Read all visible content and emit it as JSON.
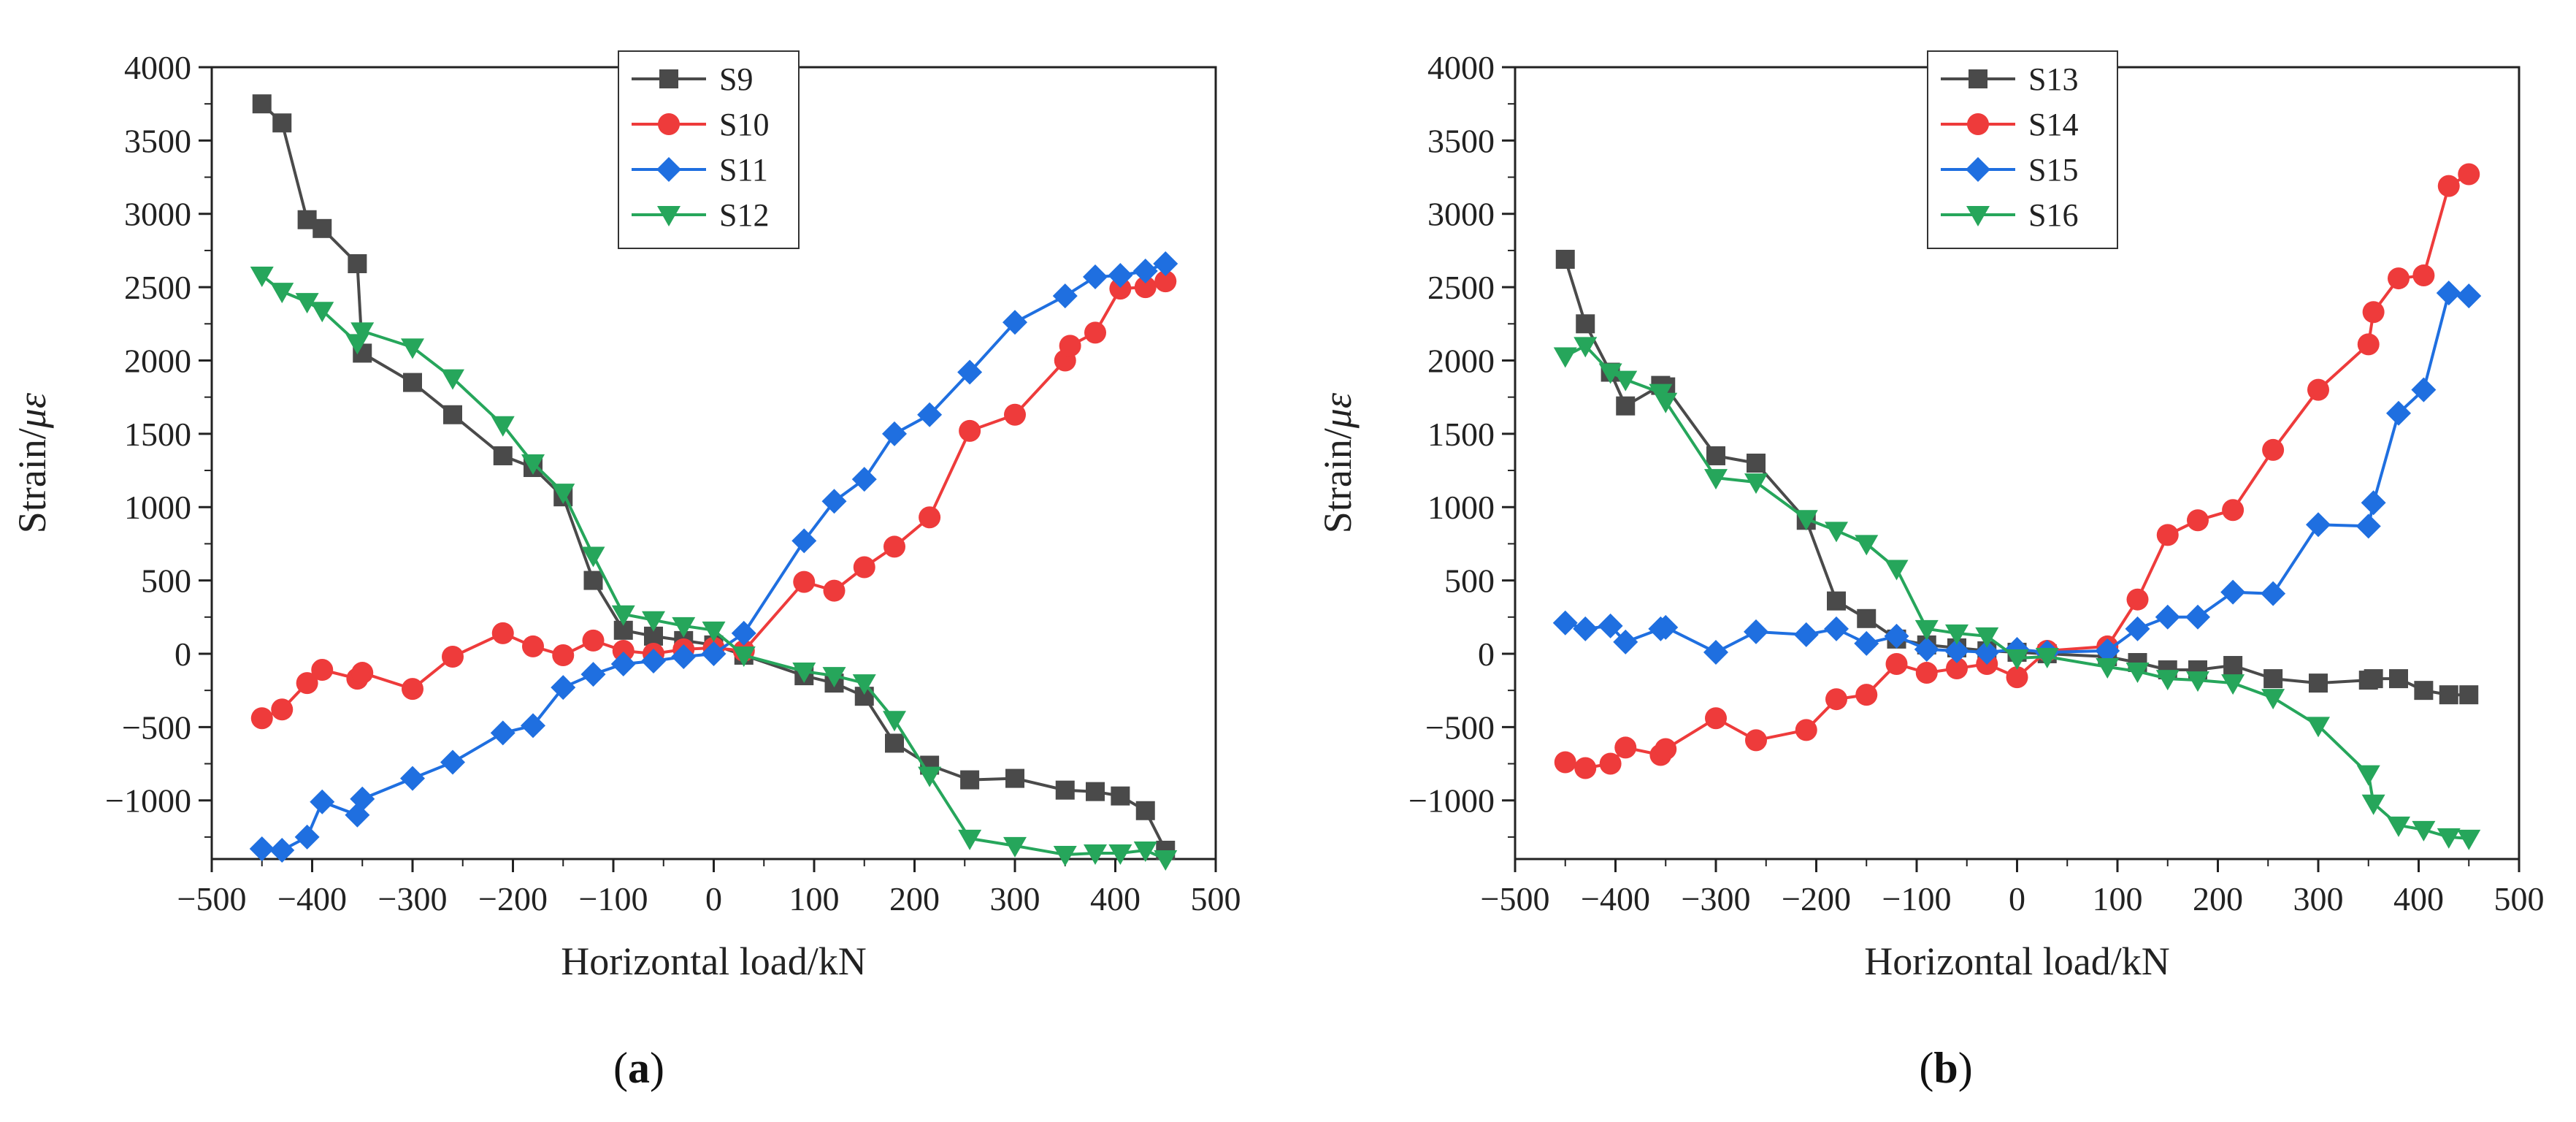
{
  "chart_data": [
    {
      "type": "line",
      "panel_label": "(a)",
      "panel_letter": "a",
      "xlabel": "Horizontal load/kN",
      "ylabel_prefix": "Strain/",
      "ylabel_unit": "με",
      "xlim": [
        -500,
        500
      ],
      "ylim": [
        -1400,
        4000
      ],
      "xticks": [
        -500,
        -400,
        -300,
        -200,
        -100,
        0,
        100,
        200,
        300,
        400,
        500
      ],
      "xtick_labels": [
        "−500",
        "−400",
        "−300",
        "−200",
        "−100",
        "0",
        "100",
        "200",
        "300",
        "400",
        "500"
      ],
      "yticks": [
        -1000,
        -500,
        0,
        500,
        1000,
        1500,
        2000,
        2500,
        3000,
        3500,
        4000
      ],
      "ytick_labels": [
        "−1000",
        "−500",
        "0",
        "500",
        "1000",
        "1500",
        "2000",
        "2500",
        "3000",
        "3500",
        "4000"
      ],
      "legend_position": "top-center",
      "series": [
        {
          "name": "S9",
          "color": "#4a4a4a",
          "marker": "square",
          "x": [
            -450,
            -430,
            -405,
            -390,
            -355,
            -350,
            -300,
            -260,
            -210,
            -180,
            -150,
            -120,
            -90,
            -60,
            -30,
            0,
            30,
            90,
            120,
            150,
            180,
            215,
            255,
            300,
            350,
            380,
            405,
            430,
            450
          ],
          "y": [
            3750,
            3620,
            2960,
            2900,
            2660,
            2050,
            1850,
            1630,
            1350,
            1270,
            1070,
            500,
            160,
            120,
            90,
            60,
            -10,
            -150,
            -200,
            -290,
            -610,
            -760,
            -860,
            -850,
            -930,
            -940,
            -970,
            -1070,
            -1340
          ]
        },
        {
          "name": "S10",
          "color": "#ee3b3b",
          "marker": "circle",
          "x": [
            -450,
            -430,
            -405,
            -390,
            -355,
            -350,
            -300,
            -260,
            -210,
            -180,
            -150,
            -120,
            -90,
            -60,
            -30,
            0,
            30,
            90,
            120,
            150,
            180,
            215,
            255,
            300,
            350,
            355,
            380,
            405,
            430,
            450
          ],
          "y": [
            -440,
            -380,
            -200,
            -110,
            -170,
            -130,
            -240,
            -20,
            140,
            50,
            -10,
            90,
            20,
            0,
            30,
            40,
            20,
            490,
            430,
            590,
            730,
            930,
            1520,
            1630,
            2000,
            2100,
            2190,
            2490,
            2500,
            2540
          ]
        },
        {
          "name": "S11",
          "color": "#1f6fe0",
          "marker": "diamond",
          "x": [
            -450,
            -430,
            -405,
            -390,
            -355,
            -350,
            -300,
            -260,
            -210,
            -180,
            -150,
            -120,
            -90,
            -60,
            -30,
            0,
            30,
            90,
            120,
            150,
            180,
            215,
            255,
            300,
            350,
            380,
            405,
            430,
            450
          ],
          "y": [
            -1330,
            -1340,
            -1250,
            -1010,
            -1100,
            -990,
            -850,
            -740,
            -540,
            -490,
            -230,
            -140,
            -70,
            -50,
            -20,
            0,
            140,
            770,
            1040,
            1190,
            1500,
            1630,
            1920,
            2260,
            2440,
            2570,
            2580,
            2610,
            2660
          ]
        },
        {
          "name": "S12",
          "color": "#26a65b",
          "marker": "triangle-down",
          "x": [
            -450,
            -430,
            -405,
            -390,
            -355,
            -350,
            -300,
            -260,
            -210,
            -180,
            -150,
            -120,
            -90,
            -60,
            -30,
            0,
            30,
            90,
            120,
            150,
            180,
            215,
            255,
            300,
            350,
            380,
            405,
            430,
            450
          ],
          "y": [
            2580,
            2470,
            2400,
            2340,
            2120,
            2200,
            2090,
            1880,
            1560,
            1300,
            1100,
            670,
            270,
            230,
            190,
            160,
            -10,
            -120,
            -150,
            -200,
            -450,
            -830,
            -1260,
            -1310,
            -1370,
            -1360,
            -1360,
            -1340,
            -1400
          ]
        }
      ]
    },
    {
      "type": "line",
      "panel_label": "(b)",
      "panel_letter": "b",
      "xlabel": "Horizontal load/kN",
      "ylabel_prefix": "Strain/",
      "ylabel_unit": "με",
      "xlim": [
        -500,
        500
      ],
      "ylim": [
        -1400,
        4000
      ],
      "xticks": [
        -500,
        -400,
        -300,
        -200,
        -100,
        0,
        100,
        200,
        300,
        400,
        500
      ],
      "xtick_labels": [
        "−500",
        "−400",
        "−300",
        "−200",
        "−100",
        "0",
        "100",
        "200",
        "300",
        "400",
        "500"
      ],
      "yticks": [
        -1000,
        -500,
        0,
        500,
        1000,
        1500,
        2000,
        2500,
        3000,
        3500,
        4000
      ],
      "ytick_labels": [
        "−1000",
        "−500",
        "0",
        "500",
        "1000",
        "1500",
        "2000",
        "2500",
        "3000",
        "3500",
        "4000"
      ],
      "legend_position": "top-center",
      "series": [
        {
          "name": "S13",
          "color": "#4a4a4a",
          "marker": "square",
          "x": [
            -450,
            -430,
            -405,
            -390,
            -355,
            -350,
            -300,
            -260,
            -210,
            -180,
            -150,
            -120,
            -90,
            -60,
            -30,
            0,
            30,
            90,
            120,
            150,
            180,
            215,
            255,
            300,
            350,
            355,
            380,
            405,
            430,
            450
          ],
          "y": [
            2690,
            2250,
            1920,
            1690,
            1830,
            1820,
            1350,
            1300,
            910,
            360,
            240,
            100,
            60,
            40,
            20,
            10,
            0,
            -20,
            -60,
            -110,
            -110,
            -80,
            -170,
            -200,
            -180,
            -170,
            -170,
            -250,
            -280,
            -280
          ]
        },
        {
          "name": "S14",
          "color": "#ee3b3b",
          "marker": "circle",
          "x": [
            -450,
            -430,
            -405,
            -390,
            -355,
            -350,
            -300,
            -260,
            -210,
            -180,
            -150,
            -120,
            -90,
            -60,
            -30,
            0,
            30,
            90,
            120,
            150,
            180,
            215,
            255,
            300,
            350,
            355,
            380,
            405,
            430,
            450
          ],
          "y": [
            -740,
            -780,
            -750,
            -640,
            -690,
            -650,
            -440,
            -590,
            -520,
            -310,
            -280,
            -70,
            -130,
            -100,
            -70,
            -160,
            20,
            50,
            370,
            810,
            910,
            980,
            1390,
            1800,
            2110,
            2330,
            2560,
            2580,
            3190,
            3270
          ]
        },
        {
          "name": "S15",
          "color": "#1f6fe0",
          "marker": "diamond",
          "x": [
            -450,
            -430,
            -405,
            -390,
            -355,
            -350,
            -300,
            -260,
            -210,
            -180,
            -150,
            -120,
            -90,
            -60,
            -30,
            0,
            30,
            90,
            120,
            150,
            180,
            215,
            255,
            300,
            350,
            355,
            380,
            405,
            430,
            450
          ],
          "y": [
            210,
            170,
            190,
            80,
            170,
            180,
            10,
            150,
            130,
            170,
            70,
            120,
            30,
            20,
            10,
            30,
            10,
            20,
            170,
            250,
            250,
            420,
            410,
            880,
            870,
            1030,
            1640,
            1800,
            2460,
            2440
          ]
        },
        {
          "name": "S16",
          "color": "#26a65b",
          "marker": "triangle-down",
          "x": [
            -450,
            -430,
            -405,
            -390,
            -355,
            -350,
            -300,
            -260,
            -210,
            -180,
            -150,
            -120,
            -90,
            -60,
            -30,
            0,
            30,
            90,
            120,
            150,
            180,
            215,
            255,
            300,
            350,
            355,
            380,
            405,
            430,
            450
          ],
          "y": [
            2030,
            2100,
            1920,
            1870,
            1780,
            1720,
            1200,
            1170,
            920,
            840,
            750,
            580,
            170,
            140,
            120,
            -30,
            -20,
            -90,
            -120,
            -170,
            -180,
            -200,
            -300,
            -490,
            -820,
            -1020,
            -1170,
            -1200,
            -1250,
            -1260
          ]
        }
      ]
    }
  ]
}
